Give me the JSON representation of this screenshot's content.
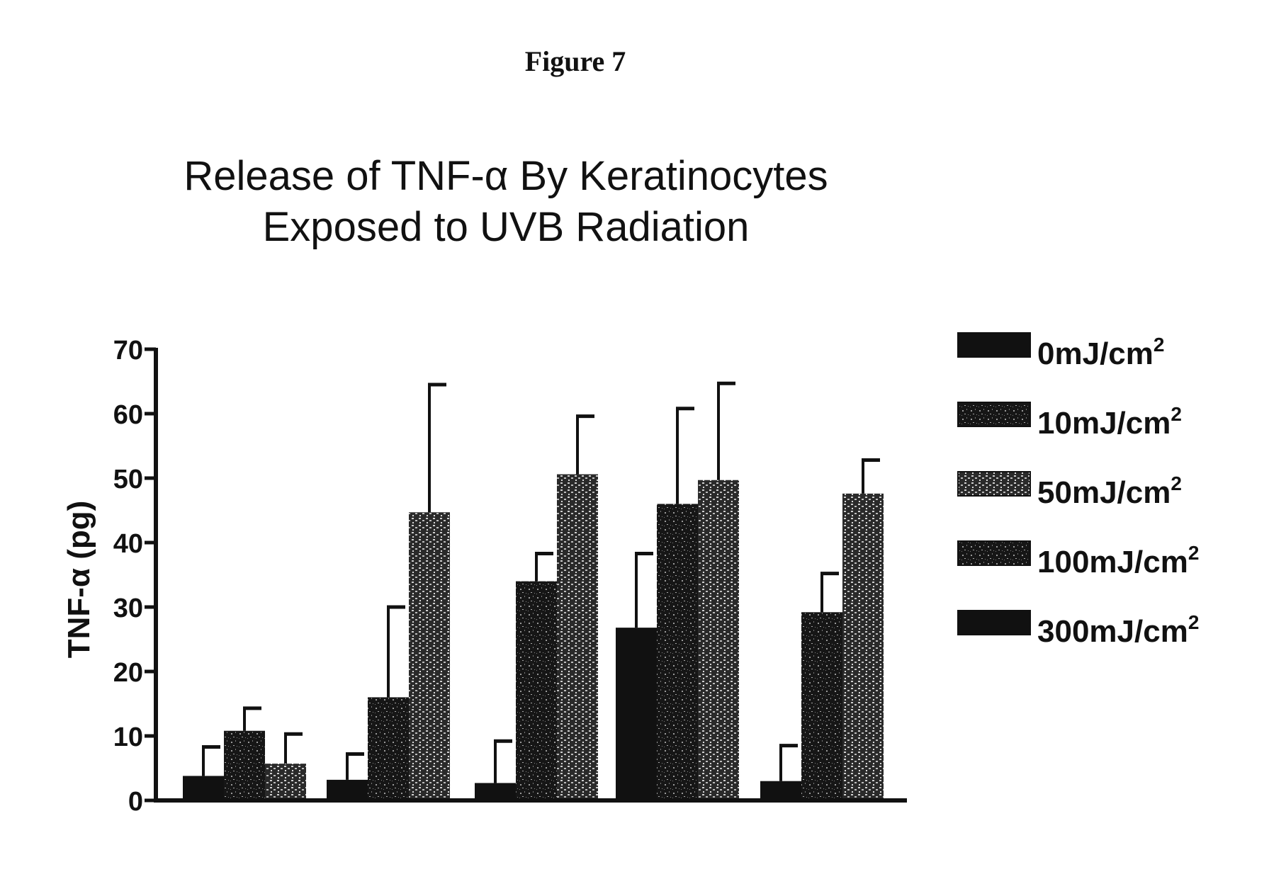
{
  "figure_label": "Figure 7",
  "colors": {
    "ink": "#111111",
    "speckle": "#9a9a9a"
  },
  "chart_data": {
    "type": "bar",
    "title": [
      "Release of TNF-α By Keratinocytes",
      "Exposed to UVB Radiation"
    ],
    "ylabel": "TNF-α (pg)",
    "xlabel": "",
    "ylim": [
      0,
      70
    ],
    "yticks": [
      0,
      10,
      20,
      30,
      40,
      50,
      60,
      70
    ],
    "grid": false,
    "legend_position": "right",
    "groups": 5,
    "series": [
      {
        "name": "0mJ/cm²",
        "label_main": "0mJ/cm",
        "label_sup": "2",
        "pattern": "solid",
        "values": [
          3.8,
          3.2,
          2.7,
          26.8,
          3.0
        ],
        "errors": [
          4.5,
          4.0,
          6.5,
          11.5,
          5.5
        ]
      },
      {
        "name": "10mJ/cm²",
        "label_main": "10mJ/cm",
        "label_sup": "2",
        "pattern": "speckle",
        "values": [
          10.8,
          16.0,
          34.0,
          46.0,
          29.2
        ],
        "errors": [
          3.5,
          14.0,
          4.3,
          14.8,
          6.0
        ]
      },
      {
        "name": "50mJ/cm²",
        "label_main": "50mJ/cm",
        "label_sup": "2",
        "pattern": "speckle-light",
        "values": [
          5.7,
          44.7,
          50.6,
          49.7,
          47.6
        ],
        "errors": [
          4.6,
          19.8,
          9.0,
          15.0,
          5.2
        ]
      },
      {
        "name": "100mJ/cm²",
        "label_main": "100mJ/cm",
        "label_sup": "2",
        "pattern": "speckle"
      },
      {
        "name": "300mJ/cm²",
        "label_main": "300mJ/cm",
        "label_sup": "2",
        "pattern": "solid"
      }
    ]
  }
}
